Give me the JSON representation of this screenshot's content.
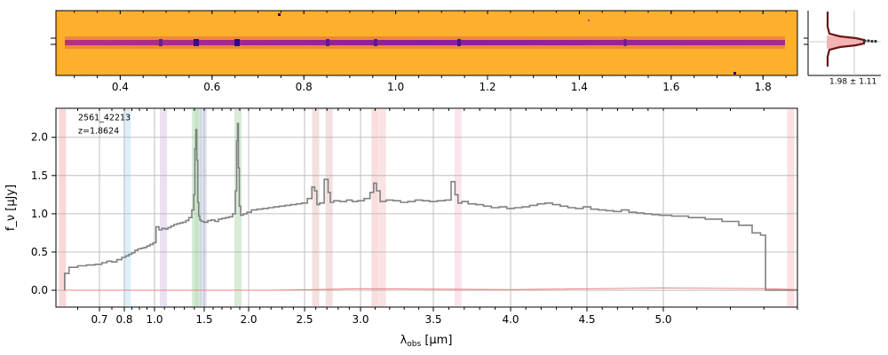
{
  "chart_data": [
    {
      "type": "image",
      "panel": "2d-spectrum",
      "x_ticks": [
        "0.4",
        "0.6",
        "0.8",
        "1.0",
        "1.2",
        "1.4",
        "1.6",
        "1.8"
      ],
      "x_tick_values": [
        0.4,
        0.6,
        0.8,
        1.0,
        1.2,
        1.4,
        1.6,
        1.8
      ],
      "xlim": [
        0.26,
        1.875
      ],
      "colormap": "plasma_r"
    },
    {
      "type": "line",
      "panel": "spatial-profile",
      "annotation": "1.98 ± 1.11"
    },
    {
      "type": "line",
      "panel": "1d-spectrum",
      "annotation": [
        "2561_42213",
        "z=1.8624"
      ],
      "xlabel_main": "λ",
      "xlabel_sub": "obs",
      "xlabel_unit": " [μm]",
      "ylabel": "f_ν [μJy]",
      "x_ticks": [
        "0.7",
        "0.8",
        "1.0",
        "1.5",
        "2.0",
        "2.5",
        "3.0",
        "3.5",
        "4.0",
        "4.5",
        "5.0"
      ],
      "x_tick_values": [
        0.7,
        0.8,
        1.0,
        1.5,
        2.0,
        2.5,
        3.0,
        3.5,
        4.0,
        4.5,
        5.0
      ],
      "y_ticks": [
        "0.0",
        "0.5",
        "1.0",
        "1.5",
        "2.0"
      ],
      "y_tick_values": [
        0.0,
        0.5,
        1.0,
        1.5,
        2.0
      ],
      "xlim": [
        0.6,
        5.4
      ],
      "ylim": [
        -0.22,
        2.38
      ],
      "x_scale": "stretched (dense at short wavelengths)",
      "grid": true,
      "series": [
        {
          "color": "#808080",
          "x": [
            0.62,
            0.64,
            0.66,
            0.68,
            0.7,
            0.72,
            0.74,
            0.76,
            0.78,
            0.8,
            0.82,
            0.84,
            0.86,
            0.88,
            0.9,
            0.92,
            0.94,
            0.96,
            0.98,
            1.0,
            1.03,
            1.06,
            1.09,
            1.12,
            1.15,
            1.18,
            1.21,
            1.24,
            1.27,
            1.3,
            1.33,
            1.36,
            1.39,
            1.4,
            1.41,
            1.42,
            1.43,
            1.44,
            1.45,
            1.46,
            1.48,
            1.52,
            1.56,
            1.6,
            1.64,
            1.68,
            1.72,
            1.76,
            1.8,
            1.84,
            1.86,
            1.87,
            1.88,
            1.89,
            1.9,
            1.92,
            1.96,
            2.0,
            2.05,
            2.1,
            2.15,
            2.2,
            2.25,
            2.3,
            2.35,
            2.4,
            2.45,
            2.5,
            2.55,
            2.58,
            2.6,
            2.62,
            2.65,
            2.7,
            2.72,
            2.74,
            2.78,
            2.85,
            2.9,
            2.95,
            3.0,
            3.05,
            3.08,
            3.1,
            3.12,
            3.15,
            3.2,
            3.25,
            3.3,
            3.35,
            3.4,
            3.45,
            3.5,
            3.55,
            3.6,
            3.63,
            3.65,
            3.67,
            3.7,
            3.75,
            3.8,
            3.85,
            3.9,
            3.95,
            4.0,
            4.05,
            4.1,
            4.15,
            4.2,
            4.25,
            4.3,
            4.35,
            4.4,
            4.45,
            4.5,
            4.55,
            4.6,
            4.65,
            4.7,
            4.75,
            4.8,
            4.85,
            4.9,
            4.95,
            5.0,
            5.05,
            5.1,
            5.15,
            5.2,
            5.25,
            5.28,
            5.3,
            5.31
          ],
          "values": [
            0.22,
            0.3,
            0.32,
            0.33,
            0.34,
            0.36,
            0.38,
            0.37,
            0.4,
            0.43,
            0.45,
            0.47,
            0.49,
            0.52,
            0.54,
            0.55,
            0.56,
            0.58,
            0.6,
            0.62,
            0.83,
            0.79,
            0.81,
            0.8,
            0.82,
            0.84,
            0.86,
            0.87,
            0.88,
            0.89,
            0.91,
            0.95,
            1.05,
            1.25,
            1.85,
            2.1,
            1.7,
            1.15,
            0.97,
            0.92,
            0.9,
            0.89,
            0.91,
            0.92,
            0.9,
            0.93,
            0.94,
            0.95,
            0.96,
            1.0,
            1.3,
            1.95,
            2.18,
            1.6,
            1.1,
            0.98,
            1.0,
            1.02,
            1.05,
            1.06,
            1.07,
            1.08,
            1.09,
            1.1,
            1.11,
            1.12,
            1.13,
            1.14,
            1.2,
            1.35,
            1.3,
            1.12,
            1.14,
            1.45,
            1.28,
            1.15,
            1.17,
            1.16,
            1.18,
            1.16,
            1.17,
            1.2,
            1.28,
            1.4,
            1.3,
            1.16,
            1.18,
            1.17,
            1.15,
            1.16,
            1.18,
            1.17,
            1.16,
            1.17,
            1.18,
            1.42,
            1.25,
            1.14,
            1.16,
            1.13,
            1.12,
            1.1,
            1.08,
            1.09,
            1.07,
            1.08,
            1.09,
            1.11,
            1.13,
            1.14,
            1.12,
            1.1,
            1.08,
            1.07,
            1.09,
            1.06,
            1.05,
            1.04,
            1.03,
            1.05,
            1.02,
            1.01,
            1.0,
            0.99,
            0.98,
            0.97,
            0.95,
            0.93,
            0.9,
            0.85,
            0.75,
            0.72,
            0.0
          ]
        },
        {
          "color": "#f08080",
          "x": [
            0.62,
            2.2,
            3.0,
            4.0,
            5.0,
            5.31
          ],
          "values": [
            0.0,
            0.0,
            0.02,
            0.01,
            0.03,
            0.02
          ]
        }
      ]
    }
  ]
}
